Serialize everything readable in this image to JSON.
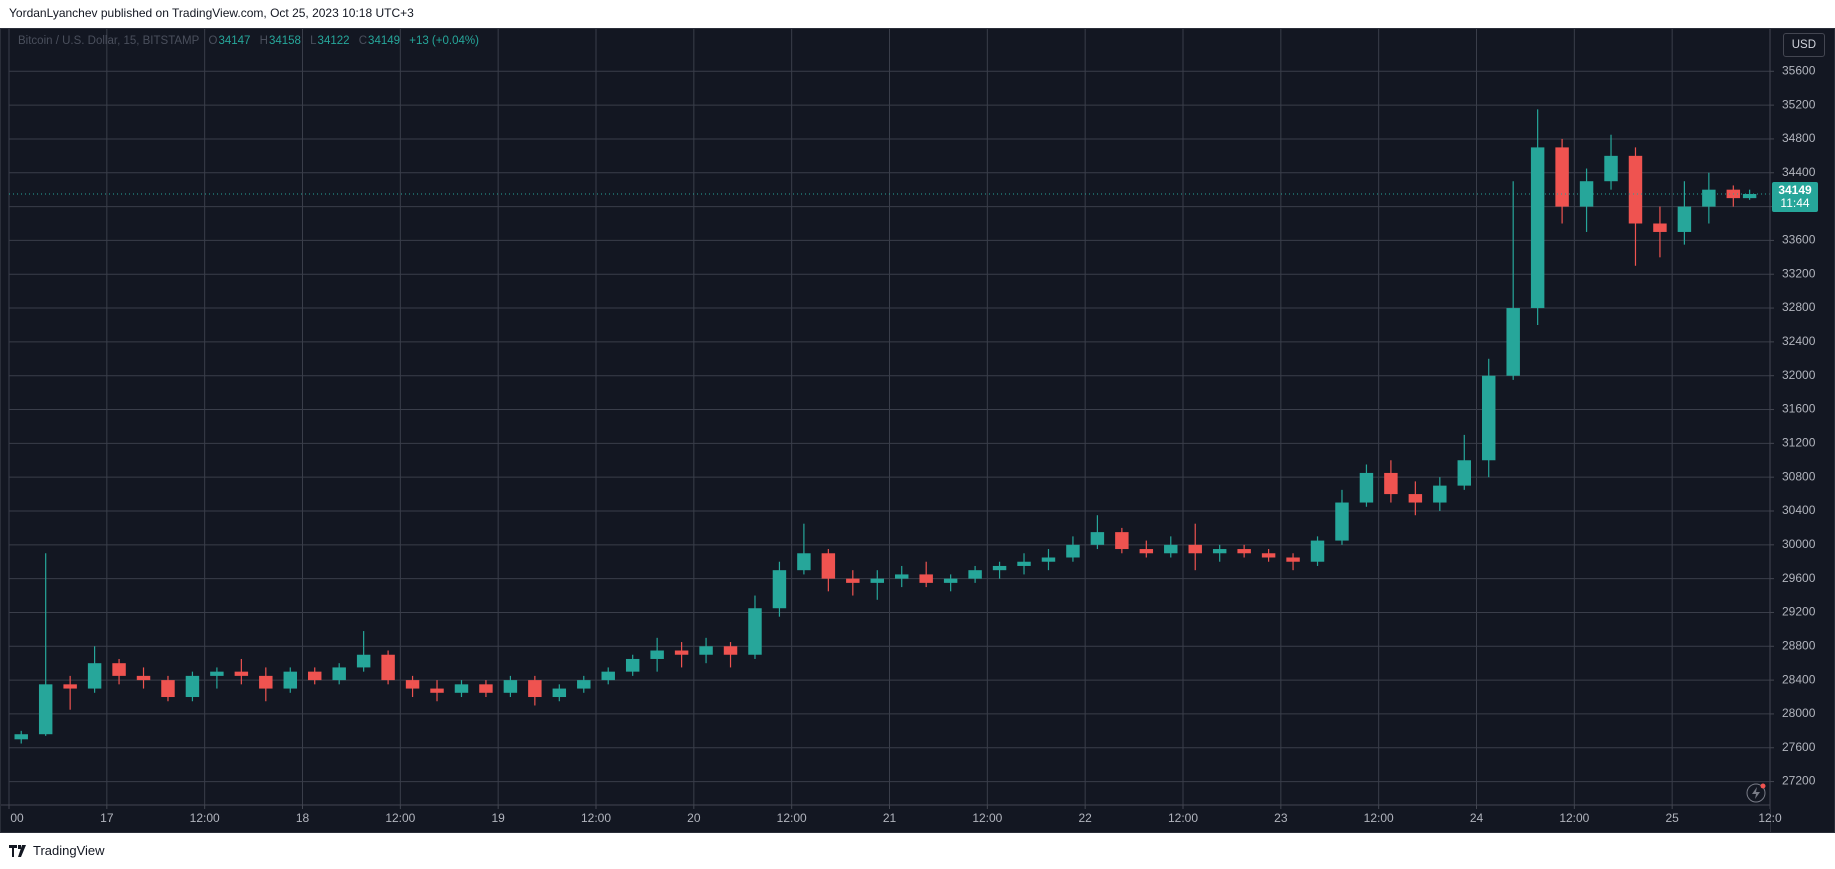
{
  "header": {
    "byline": "YordanLyanchev published on TradingView.com, Oct 25, 2023 10:18 UTC+3"
  },
  "footer": {
    "brand": "TradingView"
  },
  "chart_data": {
    "type": "candlestick",
    "symbol": "Bitcoin / U.S. Dollar, 15, BITSTAMP",
    "legend": {
      "o_label": "O",
      "open": 34147,
      "h_label": "H",
      "high": 34158,
      "l_label": "L",
      "low": 34122,
      "c_label": "C",
      "close": 34149,
      "change": "+13 (+0.04%)"
    },
    "currency": "USD",
    "price_label": {
      "value": 34149,
      "countdown": "11:44"
    },
    "up_color": "#26a69a",
    "down_color": "#ef5350",
    "grid": true,
    "xlim": [
      0,
      216
    ],
    "xticks": [
      {
        "value": 0,
        "label": "00"
      },
      {
        "value": 12,
        "label": "17"
      },
      {
        "value": 24,
        "label": "12:00"
      },
      {
        "value": 36,
        "label": "18"
      },
      {
        "value": 48,
        "label": "12:00"
      },
      {
        "value": 60,
        "label": "19"
      },
      {
        "value": 72,
        "label": "12:00"
      },
      {
        "value": 84,
        "label": "20"
      },
      {
        "value": 96,
        "label": "12:00"
      },
      {
        "value": 108,
        "label": "21"
      },
      {
        "value": 120,
        "label": "12:00"
      },
      {
        "value": 132,
        "label": "22"
      },
      {
        "value": 144,
        "label": "12:00"
      },
      {
        "value": 156,
        "label": "23"
      },
      {
        "value": 168,
        "label": "12:00"
      },
      {
        "value": 180,
        "label": "24"
      },
      {
        "value": 192,
        "label": "12:00"
      },
      {
        "value": 204,
        "label": "25"
      },
      {
        "value": 216,
        "label": "12:0"
      }
    ],
    "ylim": [
      26923,
      36112
    ],
    "yticks": [
      27200,
      27600,
      28000,
      28400,
      28800,
      29200,
      29600,
      30000,
      30400,
      30800,
      31200,
      31600,
      32000,
      32400,
      32800,
      33200,
      33600,
      34000,
      34400,
      34800,
      35200,
      35600
    ],
    "x": [
      1.5,
      4.5,
      7.5,
      10.5,
      13.5,
      16.5,
      19.5,
      22.5,
      25.5,
      28.5,
      31.5,
      34.5,
      37.5,
      40.5,
      43.5,
      46.5,
      49.5,
      52.5,
      55.5,
      58.5,
      61.5,
      64.5,
      67.5,
      70.5,
      73.5,
      76.5,
      79.5,
      82.5,
      85.5,
      88.5,
      91.5,
      94.5,
      97.5,
      100.5,
      103.5,
      106.5,
      109.5,
      112.5,
      115.5,
      118.5,
      121.5,
      124.5,
      127.5,
      130.5,
      133.5,
      136.5,
      139.5,
      142.5,
      145.5,
      148.5,
      151.5,
      154.5,
      157.5,
      160.5,
      163.5,
      166.5,
      169.5,
      172.5,
      175.5,
      178.5,
      181.5,
      184.5,
      187.5,
      190.5,
      193.5,
      196.5,
      199.5,
      202.5,
      205.5,
      208.5,
      211.5,
      213.5
    ],
    "open": [
      27700,
      27760,
      28350,
      28300,
      28600,
      28450,
      28400,
      28200,
      28450,
      28500,
      28450,
      28300,
      28500,
      28400,
      28550,
      28700,
      28400,
      28300,
      28250,
      28350,
      28250,
      28400,
      28200,
      28300,
      28400,
      28500,
      28650,
      28750,
      28700,
      28800,
      28700,
      29250,
      29700,
      29900,
      29600,
      29550,
      29600,
      29650,
      29550,
      29600,
      29700,
      29750,
      29800,
      29850,
      30000,
      30150,
      29950,
      29900,
      30000,
      29900,
      29950,
      29900,
      29850,
      29800,
      30050,
      30500,
      30850,
      30600,
      30500,
      30700,
      31000,
      32000,
      32800,
      34700,
      34000,
      34300,
      34600,
      33800,
      33700,
      34000,
      34200,
      34100
    ],
    "high": [
      27800,
      29900,
      28450,
      28800,
      28650,
      28550,
      28450,
      28500,
      28550,
      28650,
      28550,
      28550,
      28550,
      28600,
      28980,
      28750,
      28450,
      28400,
      28400,
      28400,
      28450,
      28450,
      28350,
      28450,
      28550,
      28700,
      28900,
      28850,
      28900,
      28850,
      29400,
      29800,
      30250,
      29950,
      29700,
      29700,
      29750,
      29800,
      29650,
      29750,
      29800,
      29900,
      29950,
      30100,
      30350,
      30200,
      30050,
      30100,
      30250,
      30000,
      30000,
      29950,
      29900,
      30100,
      30650,
      30950,
      31000,
      30750,
      30800,
      31300,
      32200,
      34300,
      35150,
      34800,
      34450,
      34850,
      34700,
      34000,
      34300,
      34400,
      34250,
      34200
    ],
    "low": [
      27650,
      27740,
      28050,
      28250,
      28350,
      28300,
      28150,
      28150,
      28300,
      28350,
      28150,
      28250,
      28350,
      28350,
      28500,
      28350,
      28200,
      28150,
      28200,
      28200,
      28200,
      28100,
      28150,
      28250,
      28350,
      28450,
      28500,
      28550,
      28600,
      28550,
      28650,
      29150,
      29650,
      29450,
      29400,
      29350,
      29500,
      29500,
      29450,
      29550,
      29600,
      29650,
      29700,
      29800,
      29950,
      29900,
      29850,
      29850,
      29700,
      29800,
      29850,
      29800,
      29700,
      29750,
      30000,
      30450,
      30500,
      30350,
      30400,
      30650,
      30800,
      31950,
      32600,
      33800,
      33700,
      34200,
      33300,
      33400,
      33550,
      33800,
      34000,
      34080
    ],
    "close": [
      27760,
      28350,
      28300,
      28600,
      28450,
      28400,
      28200,
      28450,
      28500,
      28450,
      28300,
      28500,
      28400,
      28550,
      28700,
      28400,
      28300,
      28250,
      28350,
      28250,
      28400,
      28200,
      28300,
      28400,
      28500,
      28650,
      28750,
      28700,
      28800,
      28700,
      29250,
      29700,
      29900,
      29600,
      29550,
      29600,
      29650,
      29550,
      29600,
      29700,
      29750,
      29800,
      29850,
      30000,
      30150,
      29950,
      29900,
      30000,
      29900,
      29950,
      29900,
      29850,
      29800,
      30050,
      30500,
      30850,
      30600,
      30500,
      30700,
      31000,
      32000,
      32800,
      34700,
      34000,
      34300,
      34600,
      33800,
      33700,
      34000,
      34200,
      34100,
      34149
    ]
  }
}
